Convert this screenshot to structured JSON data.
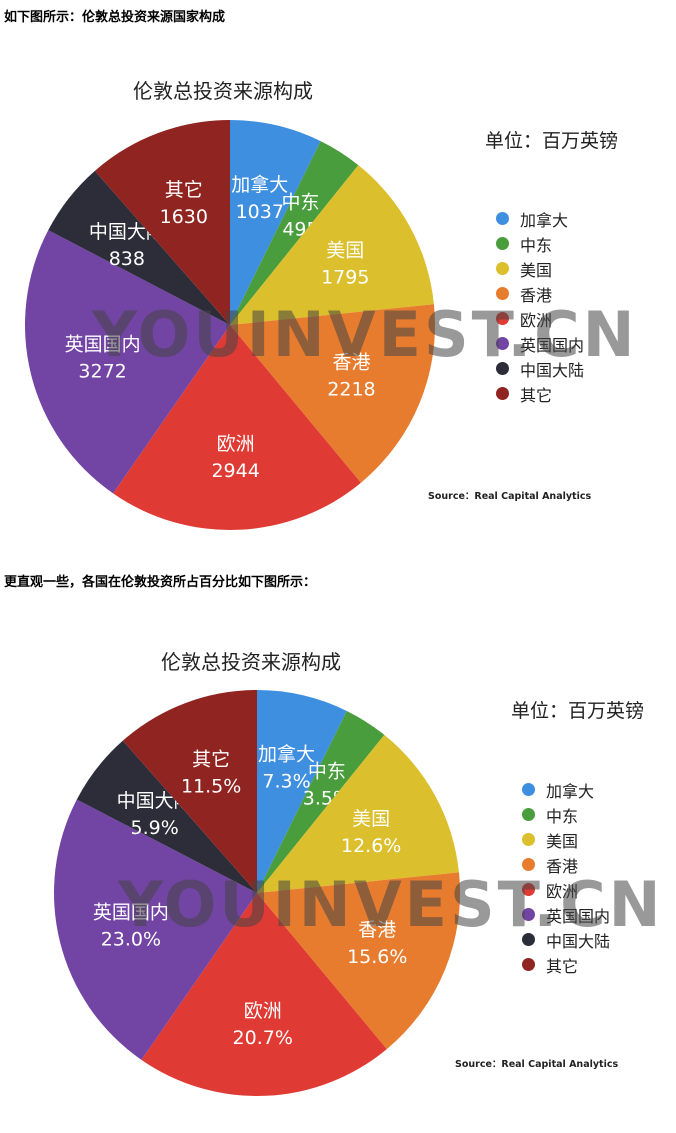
{
  "intro": {
    "line1": "如下图所示：伦敦总投资来源国家构成",
    "line2": "更直观一些，各国在伦敦投资所占百分比如下图所示："
  },
  "watermark": "YOUINVEST.CN",
  "colors": [
    "#3f8fe0",
    "#4a9d3d",
    "#dcbf2c",
    "#e77c2e",
    "#df3a33",
    "#7244a4",
    "#2c2d38",
    "#8f2420"
  ],
  "chart_data": [
    {
      "type": "pie",
      "title": "伦敦总投资来源构成",
      "unit": "单位：百万英镑",
      "source": "Source：Real Capital Analytics",
      "legend_position": "right",
      "categories": [
        "加拿大",
        "中东",
        "美国",
        "香港",
        "欧洲",
        "英国国内",
        "中国大陆",
        "其它"
      ],
      "values": [
        1037,
        495,
        1795,
        2218,
        2944,
        3272,
        838,
        1630
      ],
      "value_labels": [
        "1037",
        "495",
        "1795",
        "2218",
        "2944",
        "3272",
        "838",
        "1630"
      ]
    },
    {
      "type": "pie",
      "title": "伦敦总投资来源构成",
      "unit": "单位：百万英镑",
      "source": "Source：Real Capital Analytics",
      "legend_position": "right",
      "categories": [
        "加拿大",
        "中东",
        "美国",
        "香港",
        "欧洲",
        "英国国内",
        "中国大陆",
        "其它"
      ],
      "values": [
        7.3,
        3.5,
        12.6,
        15.6,
        20.7,
        23.0,
        5.9,
        11.5
      ],
      "value_labels": [
        "7.3%",
        "3.5%",
        "12.6%",
        "15.6%",
        "20.7%",
        "23.0%",
        "5.9%",
        "11.5%"
      ]
    }
  ]
}
